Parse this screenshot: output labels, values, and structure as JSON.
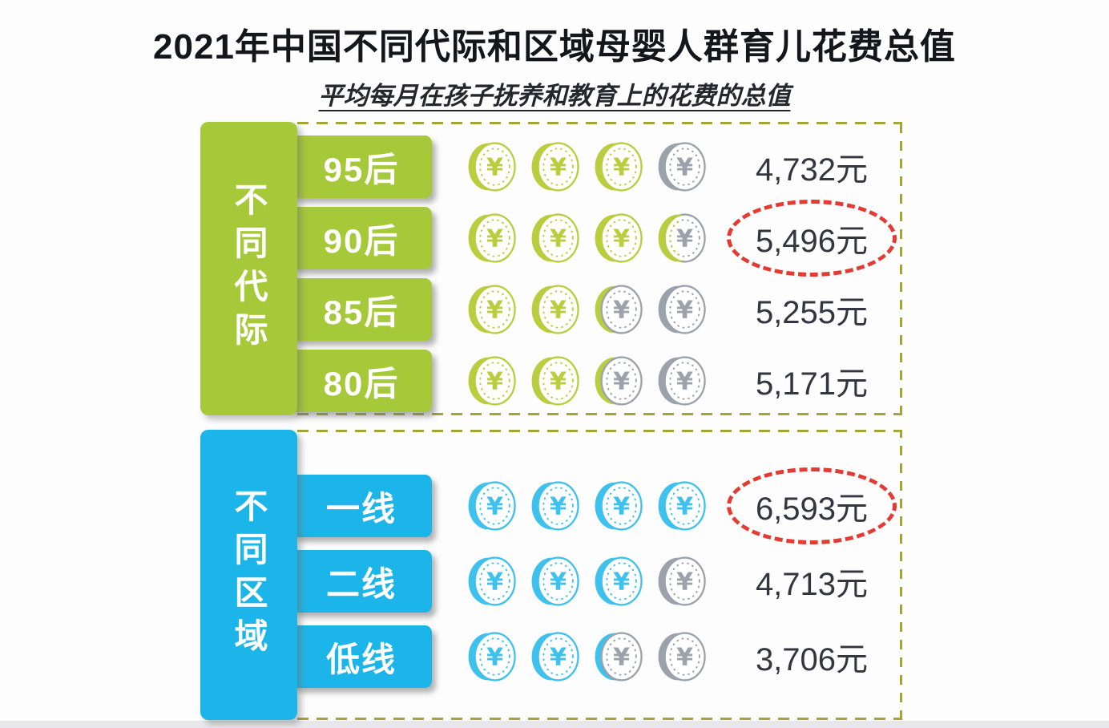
{
  "title": "2021年中国不同代际和区域母婴人群育儿花费总值",
  "subtitle": "平均每月在孩子抚养和教育上的花费的总值",
  "unit_suffix": "元",
  "colors": {
    "generation_button": "#a6c93a",
    "generation_coin": "#b9ce3e",
    "region_button": "#1cb5e9",
    "region_coin": "#3fc1ee",
    "gray_coin": "#9ba2ab",
    "section_border": "#a5a535",
    "highlight_red": "#e53a31",
    "value_text": "#35353f",
    "title_text": "#15151c"
  },
  "chart_data": {
    "type": "bar",
    "title": "2021年中国不同代际和区域母婴人群育儿花费总值",
    "subtitle": "平均每月在孩子抚养和教育上的花费的总值",
    "unit": "元",
    "grid": false,
    "legend_position": "none",
    "series": [
      {
        "name": "不同代际",
        "categories": [
          "95后",
          "90后",
          "85后",
          "80后"
        ],
        "values": [
          4732,
          5496,
          5255,
          5171
        ],
        "highlighted_category": "90后",
        "color": "#a6c93a"
      },
      {
        "name": "不同区域",
        "categories": [
          "一线",
          "二线",
          "低线"
        ],
        "values": [
          6593,
          4713,
          3706
        ],
        "highlighted_category": "一线",
        "color": "#1cb5e9"
      }
    ]
  },
  "sections": [
    {
      "name": "不同代际",
      "theme": "generation",
      "button_color": "#a6c93a",
      "coin_color": "#b9ce3e",
      "rows": [
        {
          "label": "95后",
          "value": 4732,
          "value_text": "4,732元",
          "coins": [
            "full",
            "full",
            "full",
            "gray"
          ],
          "highlighted": false
        },
        {
          "label": "90后",
          "value": 5496,
          "value_text": "5,496元",
          "coins": [
            "full",
            "full",
            "full",
            "half"
          ],
          "highlighted": true
        },
        {
          "label": "85后",
          "value": 5255,
          "value_text": "5,255元",
          "coins": [
            "full",
            "full",
            "edge",
            "gray"
          ],
          "highlighted": false
        },
        {
          "label": "80后",
          "value": 5171,
          "value_text": "5,171元",
          "coins": [
            "full",
            "full",
            "edge",
            "gray"
          ],
          "highlighted": false
        }
      ]
    },
    {
      "name": "不同区域",
      "theme": "region",
      "button_color": "#1cb5e9",
      "coin_color": "#3fc1ee",
      "rows": [
        {
          "label": "一线",
          "value": 6593,
          "value_text": "6,593元",
          "coins": [
            "full",
            "full",
            "full",
            "full"
          ],
          "highlighted": true
        },
        {
          "label": "二线",
          "value": 4713,
          "value_text": "4,713元",
          "coins": [
            "full",
            "full",
            "full",
            "gray"
          ],
          "highlighted": false
        },
        {
          "label": "低线",
          "value": 3706,
          "value_text": "3,706元",
          "coins": [
            "full",
            "full",
            "edge",
            "gray"
          ],
          "highlighted": false
        }
      ]
    }
  ]
}
